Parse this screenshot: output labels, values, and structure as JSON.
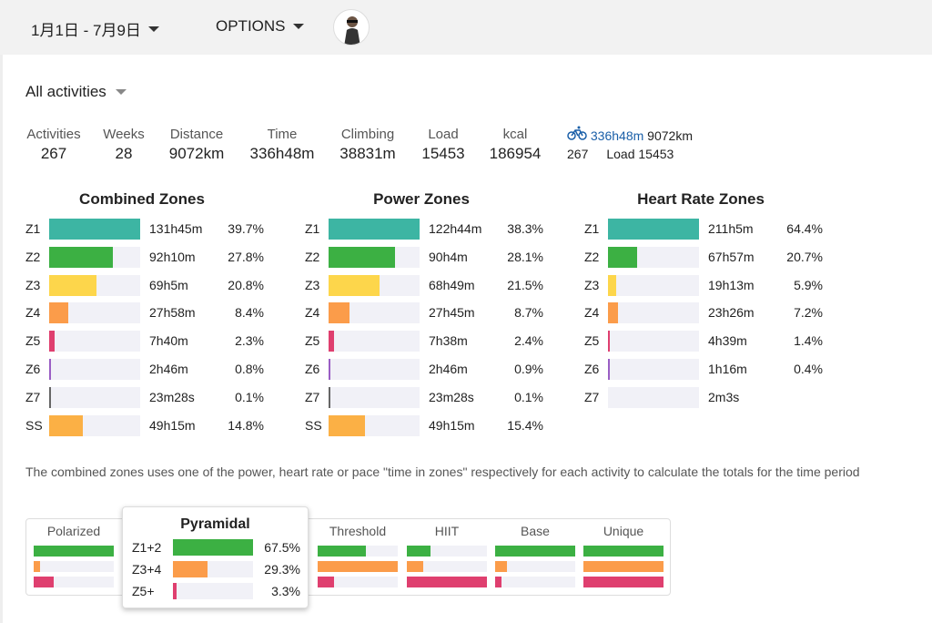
{
  "header": {
    "date_range": "1月1日 - 7月9日",
    "options": "OPTIONS"
  },
  "filter": {
    "label": "All activities"
  },
  "stats": [
    {
      "label": "Activities",
      "value": "267"
    },
    {
      "label": "Weeks",
      "value": "28"
    },
    {
      "label": "Distance",
      "value": "9072km"
    },
    {
      "label": "Time",
      "value": "336h48m"
    },
    {
      "label": "Climbing",
      "value": "38831m"
    },
    {
      "label": "Load",
      "value": "15453"
    },
    {
      "label": "kcal",
      "value": "186954"
    }
  ],
  "bike": {
    "time": "336h48m",
    "distance": "9072km",
    "count": "267",
    "load": "Load 15453"
  },
  "colors": {
    "Z1": "#3db5a3",
    "Z2": "#3cb043",
    "Z3": "#fdd64b",
    "Z4": "#fb9c4a",
    "Z5": "#df3f6f",
    "Z6": "#9a5ec4",
    "Z7": "#666666",
    "SS": "#fbb045"
  },
  "zones": [
    {
      "title": "Combined Zones",
      "rows": [
        {
          "zone": "Z1",
          "time": "131h45m",
          "pct": "39.7%",
          "value": 39.7
        },
        {
          "zone": "Z2",
          "time": "92h10m",
          "pct": "27.8%",
          "value": 27.8
        },
        {
          "zone": "Z3",
          "time": "69h5m",
          "pct": "20.8%",
          "value": 20.8
        },
        {
          "zone": "Z4",
          "time": "27h58m",
          "pct": "8.4%",
          "value": 8.4
        },
        {
          "zone": "Z5",
          "time": "7h40m",
          "pct": "2.3%",
          "value": 2.3
        },
        {
          "zone": "Z6",
          "time": "2h46m",
          "pct": "0.8%",
          "value": 0.8
        },
        {
          "zone": "Z7",
          "time": "23m28s",
          "pct": "0.1%",
          "value": 0.1
        },
        {
          "zone": "SS",
          "time": "49h15m",
          "pct": "14.8%",
          "value": 14.8
        }
      ]
    },
    {
      "title": "Power Zones",
      "rows": [
        {
          "zone": "Z1",
          "time": "122h44m",
          "pct": "38.3%",
          "value": 38.3
        },
        {
          "zone": "Z2",
          "time": "90h4m",
          "pct": "28.1%",
          "value": 28.1
        },
        {
          "zone": "Z3",
          "time": "68h49m",
          "pct": "21.5%",
          "value": 21.5
        },
        {
          "zone": "Z4",
          "time": "27h45m",
          "pct": "8.7%",
          "value": 8.7
        },
        {
          "zone": "Z5",
          "time": "7h38m",
          "pct": "2.4%",
          "value": 2.4
        },
        {
          "zone": "Z6",
          "time": "2h46m",
          "pct": "0.9%",
          "value": 0.9
        },
        {
          "zone": "Z7",
          "time": "23m28s",
          "pct": "0.1%",
          "value": 0.1
        },
        {
          "zone": "SS",
          "time": "49h15m",
          "pct": "15.4%",
          "value": 15.4
        }
      ]
    },
    {
      "title": "Heart Rate Zones",
      "rows": [
        {
          "zone": "Z1",
          "time": "211h5m",
          "pct": "64.4%",
          "value": 64.4
        },
        {
          "zone": "Z2",
          "time": "67h57m",
          "pct": "20.7%",
          "value": 20.7
        },
        {
          "zone": "Z3",
          "time": "19h13m",
          "pct": "5.9%",
          "value": 5.9
        },
        {
          "zone": "Z4",
          "time": "23h26m",
          "pct": "7.2%",
          "value": 7.2
        },
        {
          "zone": "Z5",
          "time": "4h39m",
          "pct": "1.4%",
          "value": 1.4
        },
        {
          "zone": "Z6",
          "time": "1h16m",
          "pct": "0.4%",
          "value": 0.4
        },
        {
          "zone": "Z7",
          "time": "2m3s",
          "pct": "",
          "value": 0
        }
      ]
    }
  ],
  "note": "The combined zones uses one of the power, heart rate or pace \"time in zones\" respectively for each activity to calculate the totals for the time period",
  "training_types": [
    {
      "name": "Polarized",
      "levels": [
        1.0,
        0.08,
        0.25
      ]
    },
    {
      "name": "Pyramidal",
      "levels": [
        1.0,
        0.43,
        0.05
      ]
    },
    {
      "name": "Threshold",
      "levels": [
        0.6,
        1.0,
        0.2
      ]
    },
    {
      "name": "HIIT",
      "levels": [
        0.3,
        0.2,
        1.0
      ]
    },
    {
      "name": "Base",
      "levels": [
        1.0,
        0.15,
        0.08
      ]
    },
    {
      "name": "Unique",
      "levels": [
        1.0,
        1.0,
        1.0
      ]
    }
  ],
  "type_colors": [
    "#3cb043",
    "#fb9c4a",
    "#df3f6f"
  ],
  "popup": {
    "title": "Pyramidal",
    "rows": [
      {
        "label": "Z1+2",
        "pct": "67.5%",
        "value": 67.5
      },
      {
        "label": "Z3+4",
        "pct": "29.3%",
        "value": 29.3
      },
      {
        "label": "Z5+",
        "pct": "3.3%",
        "value": 3.3
      }
    ]
  }
}
